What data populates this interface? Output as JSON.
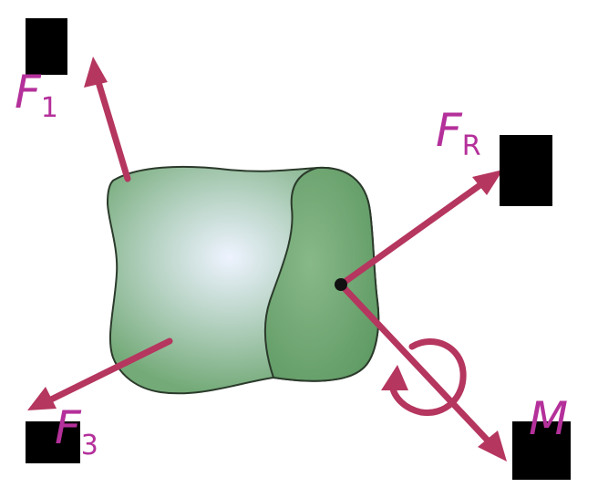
{
  "colors": {
    "arrow": "#b5365f",
    "label": "#b4309a",
    "body_fill": "#7fb07f",
    "body_highlight": "#e6eefc",
    "body_stroke": "#2b3a2b",
    "redaction_box": "#000000",
    "background": "#ffffff"
  },
  "labels": {
    "f1": {
      "symbol": "F",
      "subscript": "1"
    },
    "fr": {
      "symbol": "F",
      "subscript": "R"
    },
    "f3": {
      "symbol": "F",
      "subscript": "3"
    },
    "m": {
      "symbol": "M"
    }
  }
}
